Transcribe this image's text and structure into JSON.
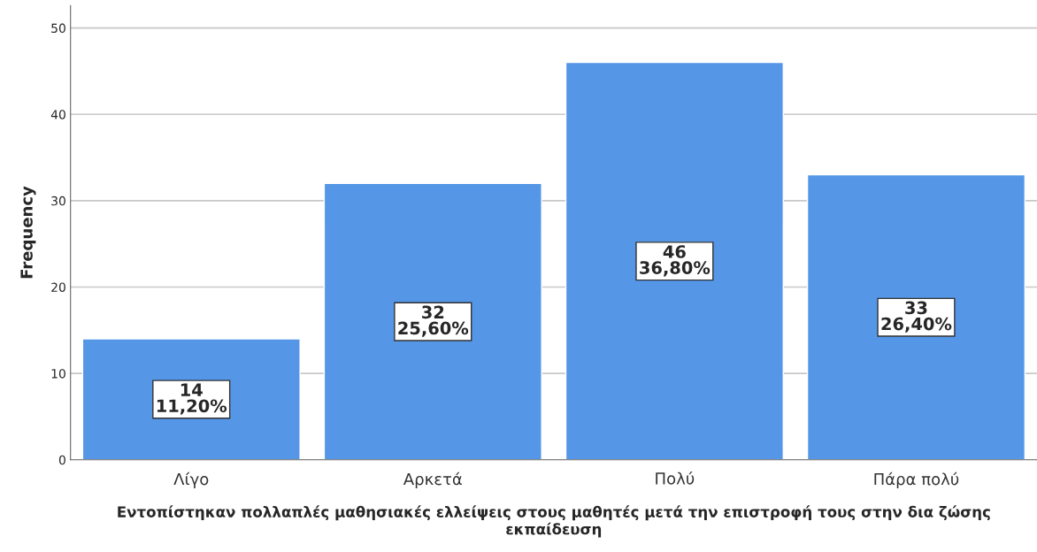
{
  "chart_data": {
    "type": "bar",
    "xlabel": "Εντοπίστηκαν πολλαπλές μαθησιακές ελλείψεις στους μαθητές μετά την επιστροφή τους στην δια ζώσης εκπαίδευση",
    "ylabel": "Frequency",
    "categories": [
      "Λίγο",
      "Αρκετά",
      "Πολύ",
      "Πάρα πολύ"
    ],
    "values": [
      14,
      32,
      46,
      33
    ],
    "value_labels": [
      "14\n11,20%",
      "32\n25,60%",
      "46\n36,80%",
      "33\n26,40%"
    ],
    "color": "#5596e6",
    "ylim": [
      0,
      52.6
    ],
    "yticks": [
      0,
      10,
      20,
      30,
      40,
      50
    ],
    "grid": "y",
    "legend": false
  }
}
